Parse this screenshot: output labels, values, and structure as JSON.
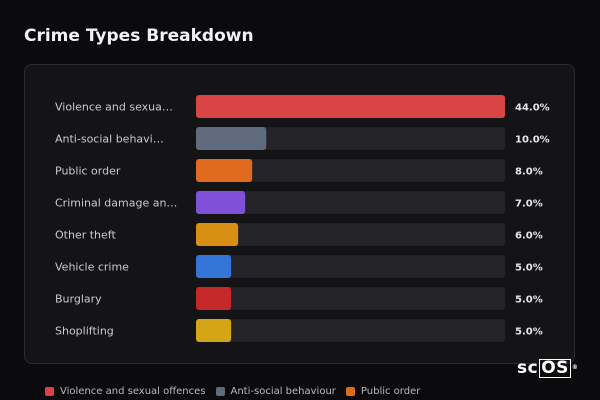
{
  "title": "Crime Types Breakdown",
  "watermark": {
    "prefix": "sc",
    "boxed": "OS",
    "mark": "®"
  },
  "colors": {
    "track": "#242428",
    "background": "#0b0b0d"
  },
  "chart_data": {
    "type": "bar",
    "orientation": "horizontal",
    "title": "Crime Types Breakdown",
    "categories": [
      "Violence and sexua…",
      "Anti-social behavi…",
      "Public order",
      "Criminal damage an…",
      "Other theft",
      "Vehicle crime",
      "Burglary",
      "Shoplifting"
    ],
    "values": [
      44.0,
      10.0,
      8.0,
      7.0,
      6.0,
      5.0,
      5.0,
      5.0
    ],
    "value_labels": [
      "44.0%",
      "10.0%",
      "8.0%",
      "7.0%",
      "6.0%",
      "5.0%",
      "5.0%",
      "5.0%"
    ],
    "colors": [
      "#d94444",
      "#5f6b7c",
      "#e06b1f",
      "#8050d8",
      "#d98e14",
      "#3575d8",
      "#c42828",
      "#d4a514"
    ],
    "xlim": [
      0,
      44.0
    ],
    "grid": false,
    "legend": {
      "placement": "bottom-left",
      "entries": [
        {
          "label": "Violence and sexual offences",
          "color": "#d94444"
        },
        {
          "label": "Anti-social behaviour",
          "color": "#5f6b7c"
        },
        {
          "label": "Public order",
          "color": "#e06b1f"
        }
      ]
    }
  }
}
